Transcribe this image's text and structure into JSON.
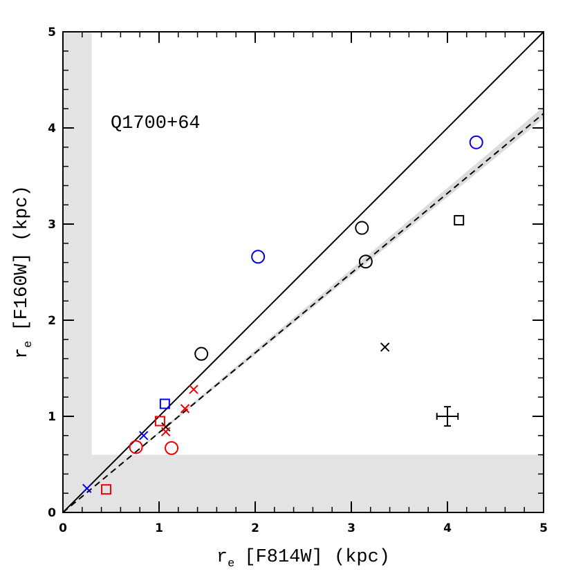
{
  "chart_data": {
    "type": "scatter",
    "annotation": "Q1700+64",
    "xlabel": {
      "main": "r",
      "sub": "e",
      "rest": "[F814W] (kpc)"
    },
    "ylabel": {
      "main": "r",
      "sub": "e",
      "rest": "[F160W] (kpc)"
    },
    "xlim": [
      0,
      5
    ],
    "ylim": [
      0,
      5
    ],
    "xticks": [
      0,
      1,
      2,
      3,
      4,
      5
    ],
    "yticks": [
      0,
      1,
      2,
      3,
      4,
      5
    ],
    "minor_tick_step": 0.2,
    "shade": {
      "x_max": 0.3,
      "y_max": 0.6,
      "color": "#e3e3e3"
    },
    "band": {
      "x": [
        0,
        5
      ],
      "low": [
        0,
        4.1
      ],
      "high": [
        0,
        4.22
      ],
      "color": "#dcdcdc"
    },
    "lines": [
      {
        "style": "solid",
        "x": [
          0,
          5
        ],
        "y": [
          0,
          5
        ]
      },
      {
        "style": "dashed",
        "x": [
          0,
          5
        ],
        "y": [
          0,
          4.15
        ]
      }
    ],
    "series": [
      {
        "marker": "circle",
        "color": "#000000",
        "x": [
          1.44,
          3.11,
          3.15
        ],
        "y": [
          1.65,
          2.96,
          2.61
        ]
      },
      {
        "marker": "square",
        "color": "#000000",
        "x": [
          4.12
        ],
        "y": [
          3.04
        ]
      },
      {
        "marker": "cross",
        "color": "#000000",
        "x": [
          3.35,
          1.07
        ],
        "y": [
          1.72,
          0.89
        ]
      },
      {
        "marker": "circle",
        "color": "#0000ee",
        "x": [
          2.03,
          4.3
        ],
        "y": [
          2.66,
          3.85
        ]
      },
      {
        "marker": "square",
        "color": "#0000ee",
        "x": [
          1.06
        ],
        "y": [
          1.13
        ]
      },
      {
        "marker": "cross",
        "color": "#0000ee",
        "x": [
          0.84,
          0.25
        ],
        "y": [
          0.8,
          0.25
        ]
      },
      {
        "marker": "circle",
        "color": "#ee0000",
        "x": [
          0.76,
          1.13
        ],
        "y": [
          0.68,
          0.67
        ]
      },
      {
        "marker": "square",
        "color": "#ee0000",
        "x": [
          1.01,
          0.45
        ],
        "y": [
          0.95,
          0.24
        ]
      },
      {
        "marker": "cross",
        "color": "#ee0000",
        "x": [
          1.36,
          1.27,
          1.07
        ],
        "y": [
          1.28,
          1.08,
          0.84
        ]
      }
    ],
    "errorbar": {
      "x": 4.0,
      "y": 1.0,
      "xerr": 0.11,
      "yerr": 0.1
    }
  }
}
